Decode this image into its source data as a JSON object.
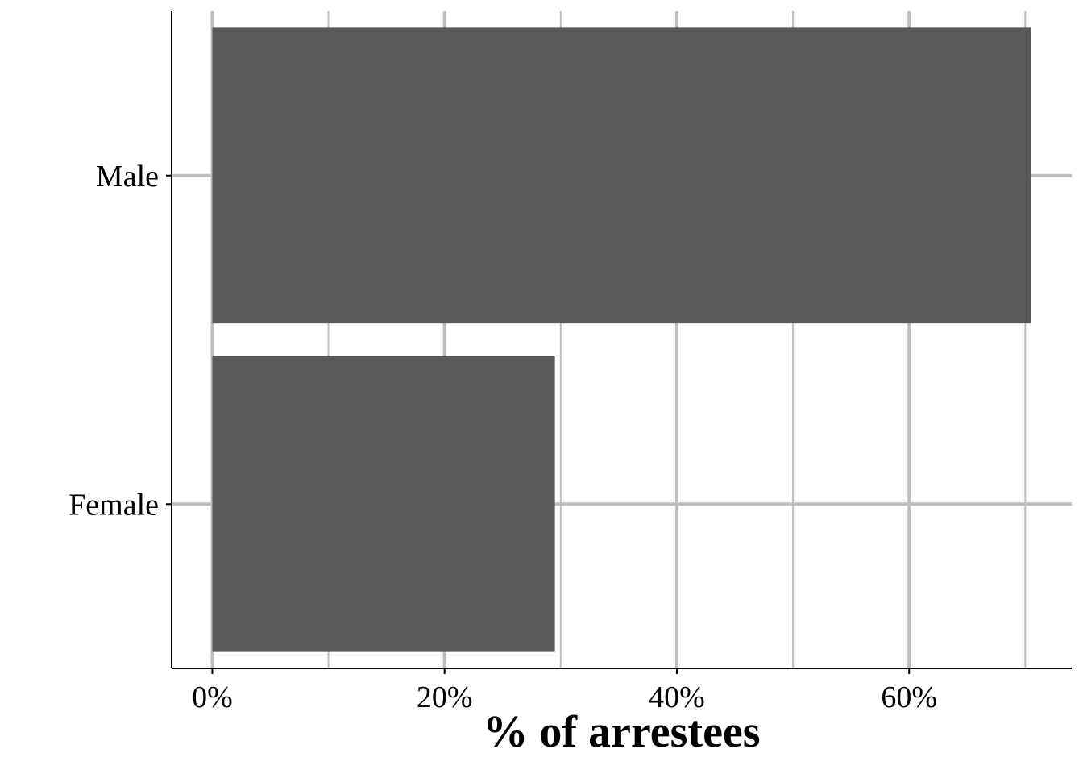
{
  "chart_data": {
    "type": "bar",
    "orientation": "horizontal",
    "categories": [
      "Female",
      "Male"
    ],
    "values": [
      29.5,
      70.5
    ],
    "xlabel": "% of arrestees",
    "ylabel": "",
    "xlim": [
      -3.5,
      74
    ],
    "xticks": [
      0,
      20,
      40,
      60
    ],
    "xtick_labels": [
      "0%",
      "20%",
      "40%",
      "60%"
    ],
    "grid": true,
    "bar_color": "#595959",
    "grid_color": "#bebebe"
  }
}
